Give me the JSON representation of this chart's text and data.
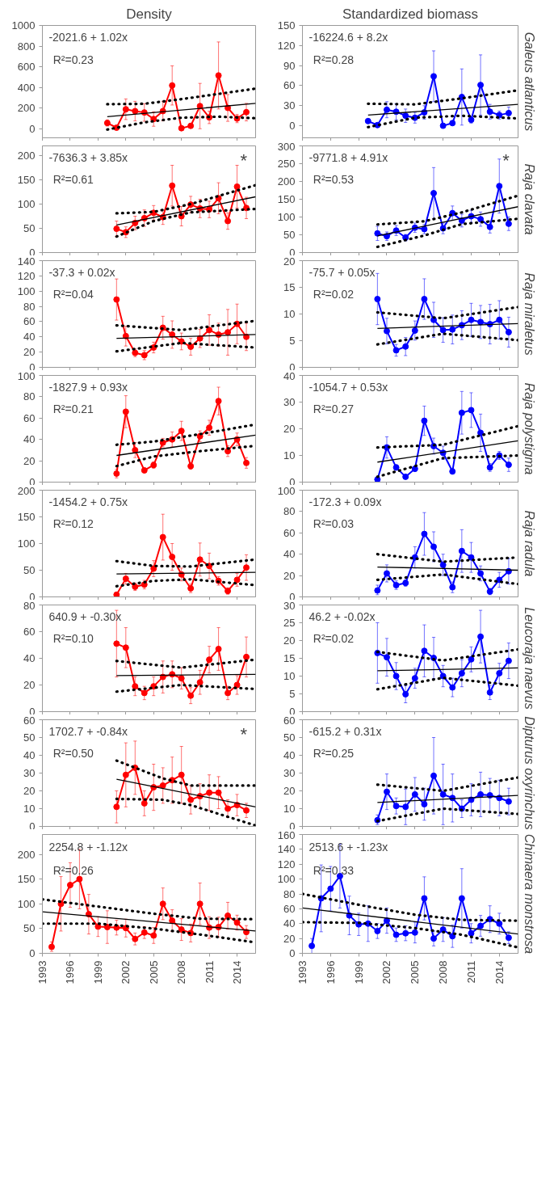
{
  "chart_data": [
    {
      "type": "line",
      "title": "Density",
      "x": [
        2000,
        2001,
        2002,
        2003,
        2004,
        2005,
        2006,
        2007,
        2008,
        2009,
        2010,
        2011,
        2012,
        2013,
        2014,
        2015
      ],
      "xlim": [
        1993,
        2016
      ],
      "xticks": [
        1993,
        1996,
        1999,
        2002,
        2005,
        2008,
        2011,
        2014
      ],
      "ylim": [
        -90,
        1000
      ],
      "yticks": [
        0,
        200,
        400,
        600,
        800,
        1000
      ],
      "grid": false,
      "tick_labels": "y",
      "annotations": [
        "-2021.6 + 1.02x",
        "R²=0.23"
      ],
      "series": [
        {
          "color": "#ff0000",
          "marker": "circle",
          "values": [
            54,
            8,
            187,
            169,
            156,
            92,
            169,
            418,
            3,
            26,
            218,
            108,
            515,
            200,
            97,
            159
          ],
          "errors": [
            30,
            null,
            100,
            95,
            85,
            70,
            95,
            190,
            null,
            20,
            220,
            60,
            325,
            130,
            40,
            85
          ]
        },
        {
          "type": "line",
          "color": "#000000",
          "x": [
            2000,
            2016
          ],
          "values": [
            115,
            244
          ]
        },
        {
          "type": "line",
          "color": "#000000",
          "line_style": "dotted",
          "x": [
            2000,
            2004,
            2008,
            2016
          ],
          "values": [
            236,
            240,
            285,
            387
          ]
        },
        {
          "type": "line",
          "color": "#000000",
          "line_style": "dotted",
          "x": [
            2000,
            2004,
            2008,
            2012,
            2016
          ],
          "values": [
            -10,
            60,
            105,
            115,
            100
          ]
        }
      ]
    },
    {
      "type": "line",
      "title": "Standardized biomass",
      "y2label": "Galeus atlanticus",
      "x": [
        2000,
        2001,
        2002,
        2003,
        2004,
        2005,
        2006,
        2007,
        2008,
        2009,
        2010,
        2011,
        2012,
        2013,
        2014,
        2015
      ],
      "xlim": [
        1993,
        2016
      ],
      "xticks": [
        1993,
        1996,
        1999,
        2002,
        2005,
        2008,
        2011,
        2014
      ],
      "ylim": [
        -18,
        150
      ],
      "yticks": [
        0,
        30,
        60,
        90,
        120,
        150
      ],
      "grid": false,
      "tick_labels": "y",
      "annotations": [
        "-16224.6 + 8.2x",
        "R²=0.28"
      ],
      "series": [
        {
          "color": "#0000ff",
          "marker": "circle",
          "values": [
            7,
            1,
            24,
            21,
            15,
            12,
            20,
            74,
            0,
            4,
            43,
            9,
            61,
            21,
            16,
            19
          ],
          "errors": [
            3,
            null,
            12,
            12,
            10,
            8,
            10,
            38,
            null,
            3,
            42,
            5,
            45,
            11,
            6,
            9
          ]
        },
        {
          "type": "line",
          "color": "#000000",
          "x": [
            2000,
            2016
          ],
          "values": [
            16,
            32
          ]
        },
        {
          "type": "line",
          "color": "#000000",
          "line_style": "dotted",
          "x": [
            2000,
            2005,
            2010,
            2016
          ],
          "values": [
            33,
            32,
            41,
            53
          ]
        },
        {
          "type": "line",
          "color": "#000000",
          "line_style": "dotted",
          "x": [
            2000,
            2005,
            2010,
            2016
          ],
          "values": [
            -2,
            12,
            15,
            11
          ]
        }
      ]
    },
    {
      "type": "line",
      "x": [
        2001,
        2002,
        2003,
        2004,
        2005,
        2006,
        2007,
        2008,
        2009,
        2010,
        2011,
        2012,
        2013,
        2014,
        2015
      ],
      "xlim": [
        1993,
        2016
      ],
      "xticks": [
        1993,
        1996,
        1999,
        2002,
        2005,
        2008,
        2011,
        2014
      ],
      "ylim": [
        0,
        220
      ],
      "yticks": [
        0,
        50,
        100,
        150,
        200
      ],
      "grid": false,
      "tick_labels": "y",
      "annotations": [
        "-7636.3 + 3.85x",
        "R²=0.61",
        "*"
      ],
      "series": [
        {
          "color": "#ff0000",
          "marker": "circle",
          "values": [
            49,
            42,
            61,
            71,
            82,
            73,
            138,
            75,
            99,
            91,
            89,
            112,
            65,
            136,
            92
          ],
          "errors": [
            16,
            11,
            14,
            17,
            15,
            15,
            42,
            20,
            17,
            19,
            17,
            32,
            17,
            44,
            22
          ]
        },
        {
          "type": "line",
          "color": "#000000",
          "x": [
            2001,
            2016
          ],
          "values": [
            57,
            115
          ]
        },
        {
          "type": "line",
          "color": "#000000",
          "line_style": "dotted",
          "x": [
            2001,
            2005,
            2009,
            2016
          ],
          "values": [
            81,
            84,
            100,
            139
          ]
        },
        {
          "type": "line",
          "color": "#000000",
          "line_style": "dotted",
          "x": [
            2001,
            2005,
            2009,
            2016
          ],
          "values": [
            33,
            65,
            83,
            90
          ]
        }
      ]
    },
    {
      "type": "line",
      "y2label": "Raja clavata",
      "x": [
        2001,
        2002,
        2003,
        2004,
        2005,
        2006,
        2007,
        2008,
        2009,
        2010,
        2011,
        2012,
        2013,
        2014,
        2015
      ],
      "xlim": [
        1993,
        2016
      ],
      "xticks": [
        1993,
        1996,
        1999,
        2002,
        2005,
        2008,
        2011,
        2014
      ],
      "ylim": [
        0,
        300
      ],
      "yticks": [
        0,
        50,
        100,
        150,
        200,
        250,
        300
      ],
      "grid": false,
      "tick_labels": "y",
      "annotations": [
        "-9771.8 + 4.91x",
        "R²=0.53",
        "*"
      ],
      "series": [
        {
          "color": "#0000ff",
          "marker": "circle",
          "values": [
            54,
            46,
            62,
            42,
            70,
            66,
            167,
            68,
            111,
            90,
            102,
            94,
            72,
            187,
            81
          ],
          "errors": [
            20,
            12,
            14,
            9,
            13,
            13,
            72,
            15,
            20,
            18,
            17,
            20,
            17,
            76,
            19
          ]
        },
        {
          "type": "line",
          "color": "#000000",
          "x": [
            2001,
            2016
          ],
          "values": [
            47,
            129
          ]
        },
        {
          "type": "line",
          "color": "#000000",
          "line_style": "dotted",
          "x": [
            2001,
            2006,
            2010,
            2016
          ],
          "values": [
            79,
            88,
            113,
            160
          ]
        },
        {
          "type": "line",
          "color": "#000000",
          "line_style": "dotted",
          "x": [
            2001,
            2006,
            2010,
            2016
          ],
          "values": [
            16,
            48,
            80,
            95
          ]
        }
      ]
    },
    {
      "type": "line",
      "x": [
        2001,
        2002,
        2003,
        2004,
        2005,
        2006,
        2007,
        2008,
        2009,
        2010,
        2011,
        2012,
        2013,
        2014,
        2015
      ],
      "xlim": [
        1993,
        2016
      ],
      "xticks": [
        1993,
        1996,
        1999,
        2002,
        2005,
        2008,
        2011,
        2014
      ],
      "ylim": [
        0,
        140
      ],
      "yticks": [
        0,
        20,
        40,
        60,
        80,
        100,
        120,
        140
      ],
      "grid": false,
      "tick_labels": "y",
      "annotations": [
        "-37.3 + 0.02x",
        "R²=0.04"
      ],
      "series": [
        {
          "color": "#ff0000",
          "marker": "circle",
          "values": [
            89,
            41,
            19,
            16,
            26,
            52,
            43,
            34,
            27,
            38,
            49,
            43,
            46,
            57,
            40
          ],
          "errors": [
            27,
            13,
            5,
            6,
            7,
            15,
            18,
            11,
            11,
            12,
            20,
            15,
            30,
            26,
            18
          ]
        },
        {
          "type": "line",
          "color": "#000000",
          "x": [
            2001,
            2016
          ],
          "values": [
            38,
            43
          ]
        },
        {
          "type": "line",
          "color": "#000000",
          "line_style": "dotted",
          "x": [
            2001,
            2008,
            2016
          ],
          "values": [
            55,
            49,
            61
          ]
        },
        {
          "type": "line",
          "color": "#000000",
          "line_style": "dotted",
          "x": [
            2001,
            2008,
            2016
          ],
          "values": [
            21,
            32,
            26
          ]
        }
      ]
    },
    {
      "type": "line",
      "y2label": "Raja miraletus",
      "x": [
        2001,
        2002,
        2003,
        2004,
        2005,
        2006,
        2007,
        2008,
        2009,
        2010,
        2011,
        2012,
        2013,
        2014,
        2015
      ],
      "xlim": [
        1993,
        2016
      ],
      "xticks": [
        1993,
        1996,
        1999,
        2002,
        2005,
        2008,
        2011,
        2014
      ],
      "ylim": [
        0,
        20
      ],
      "yticks": [
        0,
        5,
        10,
        15,
        20
      ],
      "grid": false,
      "tick_labels": "y",
      "annotations": [
        "-75.7 + 0.05x",
        "R²=0.02"
      ],
      "series": [
        {
          "color": "#0000ff",
          "marker": "circle",
          "values": [
            12.8,
            6.8,
            3.2,
            3.9,
            6.9,
            12.8,
            8.9,
            7.0,
            7.1,
            7.9,
            8.9,
            8.5,
            8.1,
            8.9,
            6.6
          ],
          "errors": [
            4.8,
            2.4,
            1.1,
            1.7,
            1.8,
            3.8,
            3.3,
            2.3,
            2.7,
            2.7,
            3.1,
            3.1,
            3.7,
            3.6,
            2.8
          ]
        },
        {
          "type": "line",
          "color": "#000000",
          "x": [
            2001,
            2016
          ],
          "values": [
            7.3,
            8.2
          ]
        },
        {
          "type": "line",
          "color": "#000000",
          "line_style": "dotted",
          "x": [
            2001,
            2008,
            2016
          ],
          "values": [
            10.3,
            9.2,
            11.3
          ]
        },
        {
          "type": "line",
          "color": "#000000",
          "line_style": "dotted",
          "x": [
            2001,
            2008,
            2016
          ],
          "values": [
            4.3,
            6.3,
            5.1
          ]
        }
      ]
    },
    {
      "type": "line",
      "x": [
        2001,
        2002,
        2003,
        2004,
        2005,
        2006,
        2007,
        2008,
        2009,
        2010,
        2011,
        2012,
        2013,
        2014,
        2015
      ],
      "xlim": [
        1993,
        2016
      ],
      "xticks": [
        1993,
        1996,
        1999,
        2002,
        2005,
        2008,
        2011,
        2014
      ],
      "ylim": [
        0,
        100
      ],
      "yticks": [
        0,
        20,
        40,
        60,
        80,
        100
      ],
      "grid": false,
      "tick_labels": "y",
      "annotations": [
        "-1827.9 + 0.93x",
        "R²=0.21"
      ],
      "series": [
        {
          "color": "#ff0000",
          "marker": "circle",
          "values": [
            8,
            66,
            30,
            11,
            16,
            37,
            40,
            48,
            15,
            43,
            51,
            76,
            29,
            40,
            18
          ],
          "errors": [
            4,
            15,
            7,
            2,
            3,
            4,
            7,
            9,
            3,
            5,
            7,
            13,
            5,
            6,
            5
          ]
        },
        {
          "type": "line",
          "color": "#000000",
          "x": [
            2001,
            2016
          ],
          "values": [
            25,
            44
          ]
        },
        {
          "type": "line",
          "color": "#000000",
          "line_style": "dotted",
          "x": [
            2001,
            2005,
            2010,
            2016
          ],
          "values": [
            35,
            38,
            45,
            54
          ]
        },
        {
          "type": "line",
          "color": "#000000",
          "line_style": "dotted",
          "x": [
            2001,
            2005,
            2010,
            2016
          ],
          "values": [
            15,
            24,
            29,
            34
          ]
        }
      ]
    },
    {
      "type": "line",
      "y2label": "Raja polystigma",
      "x": [
        2001,
        2002,
        2003,
        2004,
        2005,
        2006,
        2007,
        2008,
        2009,
        2010,
        2011,
        2012,
        2013,
        2014,
        2015
      ],
      "xlim": [
        1993,
        2016
      ],
      "xticks": [
        1993,
        1996,
        1999,
        2002,
        2005,
        2008,
        2011,
        2014
      ],
      "ylim": [
        0,
        40
      ],
      "yticks": [
        0,
        10,
        20,
        30,
        40
      ],
      "grid": false,
      "tick_labels": "y",
      "annotations": [
        "-1054.7 + 0.53x",
        "R²=0.27"
      ],
      "series": [
        {
          "color": "#0000ff",
          "marker": "circle",
          "values": [
            1,
            13,
            5.5,
            2,
            5,
            23,
            13.5,
            11,
            4,
            26,
            27,
            18.5,
            5.5,
            10,
            6.5
          ],
          "errors": [
            null,
            4,
            1,
            null,
            1,
            5.5,
            3,
            2.5,
            1,
            8,
            6.5,
            7,
            1.5,
            1.5,
            2.5
          ]
        },
        {
          "type": "line",
          "color": "#000000",
          "x": [
            2001,
            2016
          ],
          "values": [
            7.5,
            15.5
          ]
        },
        {
          "type": "line",
          "color": "#000000",
          "line_style": "dotted",
          "x": [
            2001,
            2008,
            2016
          ],
          "values": [
            13,
            14,
            21
          ]
        },
        {
          "type": "line",
          "color": "#000000",
          "line_style": "dotted",
          "x": [
            2001,
            2008,
            2016
          ],
          "values": [
            2,
            9,
            10
          ]
        }
      ]
    },
    {
      "type": "line",
      "x": [
        2001,
        2002,
        2003,
        2004,
        2005,
        2006,
        2007,
        2008,
        2009,
        2010,
        2011,
        2012,
        2013,
        2014,
        2015
      ],
      "xlim": [
        1993,
        2016
      ],
      "xticks": [
        1993,
        1996,
        1999,
        2002,
        2005,
        2008,
        2011,
        2014
      ],
      "ylim": [
        0,
        200
      ],
      "yticks": [
        0,
        50,
        100,
        150,
        200
      ],
      "grid": false,
      "tick_labels": "y",
      "annotations": [
        "-1454.2 + 0.75x",
        "R²=0.12"
      ],
      "series": [
        {
          "color": "#ff0000",
          "marker": "circle",
          "values": [
            4,
            34,
            19,
            23,
            53,
            112,
            75,
            42,
            16,
            70,
            58,
            30,
            11,
            32,
            55
          ],
          "errors": [
            4,
            10,
            7,
            8,
            15,
            43,
            25,
            12,
            8,
            31,
            24,
            8,
            6,
            12,
            24
          ]
        },
        {
          "type": "line",
          "color": "#000000",
          "x": [
            2001,
            2016
          ],
          "values": [
            43,
            46
          ]
        },
        {
          "type": "line",
          "color": "#000000",
          "line_style": "dotted",
          "x": [
            2001,
            2005,
            2009,
            2016
          ],
          "values": [
            67,
            58,
            57,
            70
          ]
        },
        {
          "type": "line",
          "color": "#000000",
          "line_style": "dotted",
          "x": [
            2001,
            2005,
            2009,
            2016
          ],
          "values": [
            20,
            30,
            33,
            22
          ]
        }
      ]
    },
    {
      "type": "line",
      "y2label": "Raja radula",
      "x": [
        2001,
        2002,
        2003,
        2004,
        2005,
        2006,
        2007,
        2008,
        2009,
        2010,
        2011,
        2012,
        2013,
        2014,
        2015
      ],
      "xlim": [
        1993,
        2016
      ],
      "xticks": [
        1993,
        1996,
        1999,
        2002,
        2005,
        2008,
        2011,
        2014
      ],
      "ylim": [
        0,
        100
      ],
      "yticks": [
        0,
        20,
        40,
        60,
        80,
        100
      ],
      "grid": false,
      "tick_labels": "y",
      "annotations": [
        "-172.3 + 0.09x",
        "R²=0.03"
      ],
      "series": [
        {
          "color": "#0000ff",
          "marker": "circle",
          "values": [
            6,
            22,
            11,
            13,
            37,
            59,
            47,
            30,
            9,
            43,
            37,
            22,
            5,
            16,
            24
          ],
          "errors": [
            [
              4,
              5
            ],
            8,
            4,
            3,
            10,
            20,
            14,
            10,
            5,
            20,
            14,
            7,
            3,
            7,
            12
          ]
        },
        {
          "type": "line",
          "color": "#000000",
          "x": [
            2001,
            2016
          ],
          "values": [
            28,
            25
          ]
        },
        {
          "type": "line",
          "color": "#000000",
          "line_style": "dotted",
          "x": [
            2001,
            2008,
            2016
          ],
          "values": [
            40,
            33,
            37
          ]
        },
        {
          "type": "line",
          "color": "#000000",
          "line_style": "dotted",
          "x": [
            2001,
            2008,
            2016
          ],
          "values": [
            16,
            21,
            12
          ]
        }
      ]
    },
    {
      "type": "line",
      "x": [
        2001,
        2002,
        2003,
        2004,
        2005,
        2006,
        2007,
        2008,
        2009,
        2010,
        2011,
        2012,
        2013,
        2014,
        2015
      ],
      "xlim": [
        1993,
        2016
      ],
      "xticks": [
        1993,
        1996,
        1999,
        2002,
        2005,
        2008,
        2011,
        2014
      ],
      "ylim": [
        0,
        80
      ],
      "yticks": [
        0,
        20,
        40,
        60,
        80
      ],
      "grid": false,
      "tick_labels": "y",
      "annotations": [
        "640.9 + -0.30x",
        "R²=0.10"
      ],
      "series": [
        {
          "color": "#ff0000",
          "marker": "circle",
          "values": [
            51,
            48,
            19,
            14,
            19,
            26,
            28,
            25,
            12,
            22,
            39,
            47,
            14,
            20,
            41
          ],
          "errors": [
            25,
            15,
            7,
            5,
            7,
            12,
            10,
            8,
            6,
            9,
            10,
            16,
            5,
            7,
            15
          ]
        },
        {
          "type": "line",
          "color": "#000000",
          "x": [
            2001,
            2016
          ],
          "values": [
            27,
            28
          ]
        },
        {
          "type": "line",
          "color": "#000000",
          "line_style": "dotted",
          "x": [
            2001,
            2008,
            2016
          ],
          "values": [
            38,
            33,
            39
          ]
        },
        {
          "type": "line",
          "color": "#000000",
          "line_style": "dotted",
          "x": [
            2001,
            2008,
            2016
          ],
          "values": [
            15,
            20,
            17
          ]
        }
      ]
    },
    {
      "type": "line",
      "y2label": "Leucoraja naevus",
      "x": [
        2001,
        2002,
        2003,
        2004,
        2005,
        2006,
        2007,
        2008,
        2009,
        2010,
        2011,
        2012,
        2013,
        2014,
        2015
      ],
      "xlim": [
        1993,
        2016
      ],
      "xticks": [
        1993,
        1996,
        1999,
        2002,
        2005,
        2008,
        2011,
        2014
      ],
      "ylim": [
        0,
        30
      ],
      "yticks": [
        0,
        5,
        10,
        15,
        20,
        25,
        30
      ],
      "grid": false,
      "tick_labels": "y",
      "annotations": [
        "46.2 + -0.02x",
        "R²=0.02"
      ],
      "series": [
        {
          "color": "#0000ff",
          "marker": "circle",
          "values": [
            16.5,
            15.3,
            10,
            4.9,
            9.4,
            17.1,
            15.1,
            10,
            6.8,
            10.8,
            14.7,
            21.1,
            5.4,
            10.8,
            14.3
          ],
          "errors": [
            8.5,
            5.3,
            3.8,
            2.4,
            2.8,
            7.3,
            5.8,
            3,
            2.6,
            3.8,
            3.5,
            7.4,
            2,
            2.8,
            5
          ]
        },
        {
          "type": "line",
          "color": "#000000",
          "x": [
            2001,
            2016
          ],
          "values": [
            11.5,
            12.3
          ]
        },
        {
          "type": "line",
          "color": "#000000",
          "line_style": "dotted",
          "x": [
            2001,
            2008,
            2016
          ],
          "values": [
            16.8,
            14.4,
            17.5
          ]
        },
        {
          "type": "line",
          "color": "#000000",
          "line_style": "dotted",
          "x": [
            2001,
            2008,
            2016
          ],
          "values": [
            6.3,
            9.5,
            7.3
          ]
        }
      ]
    },
    {
      "type": "line",
      "x": [
        2001,
        2002,
        2003,
        2004,
        2005,
        2006,
        2007,
        2008,
        2009,
        2010,
        2011,
        2012,
        2013,
        2014,
        2015
      ],
      "xlim": [
        1993,
        2016
      ],
      "xticks": [
        1993,
        1996,
        1999,
        2002,
        2005,
        2008,
        2011,
        2014
      ],
      "ylim": [
        0,
        60
      ],
      "yticks": [
        0,
        10,
        20,
        30,
        40,
        50,
        60
      ],
      "grid": false,
      "tick_labels": "y",
      "annotations": [
        "1702.7 + -0.84x",
        "R²=0.50",
        "*"
      ],
      "series": [
        {
          "color": "#ff0000",
          "marker": "circle",
          "values": [
            11,
            29,
            33,
            13,
            22,
            23,
            26,
            29,
            15,
            17,
            19,
            19,
            10,
            12,
            9
          ],
          "errors": [
            9,
            18,
            15,
            7,
            13,
            10,
            13,
            16,
            8,
            7,
            10,
            9,
            5,
            6,
            4
          ]
        },
        {
          "type": "line",
          "color": "#000000",
          "x": [
            2001,
            2016
          ],
          "values": [
            26.5,
            11
          ]
        },
        {
          "type": "line",
          "color": "#000000",
          "line_style": "dotted",
          "x": [
            2001,
            2006,
            2009,
            2016
          ],
          "values": [
            37,
            27,
            23,
            23
          ]
        },
        {
          "type": "line",
          "color": "#000000",
          "line_style": "dotted",
          "x": [
            2001,
            2006,
            2009,
            2016
          ],
          "values": [
            15.5,
            15,
            12,
            0.5
          ]
        }
      ]
    },
    {
      "type": "line",
      "y2label": "Dipturus oxyrinchus",
      "x": [
        2001,
        2002,
        2003,
        2004,
        2005,
        2006,
        2007,
        2008,
        2009,
        2010,
        2011,
        2012,
        2013,
        2014,
        2015
      ],
      "xlim": [
        1993,
        2016
      ],
      "xticks": [
        1993,
        1996,
        1999,
        2002,
        2005,
        2008,
        2011,
        2014
      ],
      "ylim": [
        0,
        60
      ],
      "yticks": [
        0,
        10,
        20,
        30,
        40,
        50,
        60
      ],
      "grid": false,
      "tick_labels": "y",
      "annotations": [
        "-615.2 + 0.31x",
        "R²=0.25"
      ],
      "series": [
        {
          "color": "#0000ff",
          "marker": "circle",
          "values": [
            3.5,
            19.5,
            11.5,
            11,
            18,
            12.5,
            28.5,
            18,
            16,
            10,
            15,
            18,
            17.5,
            16,
            14
          ],
          "errors": [
            [
              2.5,
              3
            ],
            10,
            4.5,
            10,
            9.5,
            9,
            21.5,
            17,
            13.5,
            5,
            9,
            12.5,
            9.5,
            10,
            7.5
          ]
        },
        {
          "type": "line",
          "color": "#000000",
          "x": [
            2001,
            2016
          ],
          "values": [
            13.5,
            17.4
          ]
        },
        {
          "type": "line",
          "color": "#000000",
          "line_style": "dotted",
          "x": [
            2001,
            2008,
            2016
          ],
          "values": [
            23.5,
            20,
            27.5
          ]
        },
        {
          "type": "line",
          "color": "#000000",
          "line_style": "dotted",
          "x": [
            2001,
            2008,
            2016
          ],
          "values": [
            3,
            10,
            7
          ]
        }
      ]
    },
    {
      "type": "line",
      "x": [
        1994,
        1995,
        1996,
        1997,
        1998,
        1999,
        2000,
        2001,
        2002,
        2003,
        2004,
        2005,
        2006,
        2007,
        2008,
        2009,
        2010,
        2011,
        2012,
        2013,
        2014,
        2015
      ],
      "xlim": [
        1993,
        2016
      ],
      "xticks": [
        1993,
        1996,
        1999,
        2002,
        2005,
        2008,
        2011,
        2014
      ],
      "ylim": [
        0,
        240
      ],
      "yticks": [
        0,
        50,
        100,
        150,
        200
      ],
      "grid": false,
      "annotations": [
        "2254.8 + -1.12x",
        "R²=0.26"
      ],
      "series": [
        {
          "color": "#ff0000",
          "marker": "circle",
          "values": [
            13,
            100,
            138,
            150,
            79,
            54,
            53,
            52,
            51,
            29,
            42,
            36,
            100,
            66,
            48,
            41,
            100,
            52,
            53,
            76,
            62,
            43
          ],
          "errors": [
            [
              9,
              10
            ],
            55,
            45,
            60,
            40,
            20,
            33,
            15,
            18,
            12,
            12,
            16,
            32,
            22,
            22,
            18,
            42,
            22,
            20,
            27,
            15,
            13
          ]
        },
        {
          "type": "line",
          "color": "#000000",
          "x": [
            1993,
            2016
          ],
          "values": [
            84,
            45
          ]
        },
        {
          "type": "line",
          "color": "#000000",
          "line_style": "dotted",
          "x": [
            1993,
            2000,
            2005,
            2010,
            2016
          ],
          "values": [
            109,
            92,
            80,
            70,
            69
          ]
        },
        {
          "type": "line",
          "color": "#000000",
          "line_style": "dotted",
          "x": [
            1993,
            1999,
            2005,
            2010,
            2016
          ],
          "values": [
            60,
            60,
            50,
            38,
            22
          ]
        }
      ]
    },
    {
      "type": "line",
      "y2label": "Chimaera monstrosa",
      "x": [
        1994,
        1995,
        1996,
        1997,
        1998,
        1999,
        2000,
        2001,
        2002,
        2003,
        2004,
        2005,
        2006,
        2007,
        2008,
        2009,
        2010,
        2011,
        2012,
        2013,
        2014,
        2015
      ],
      "xlim": [
        1993,
        2016
      ],
      "xticks": [
        1993,
        1996,
        1999,
        2002,
        2005,
        2008,
        2011,
        2014
      ],
      "ylim": [
        0,
        160
      ],
      "yticks": [
        0,
        20,
        40,
        60,
        80,
        100,
        120,
        140,
        160
      ],
      "grid": false,
      "annotations": [
        "2513.6 + -1.23x",
        "R²=0.33"
      ],
      "series": [
        {
          "color": "#0000ff",
          "marker": "circle",
          "values": [
            10,
            74,
            87,
            104,
            51,
            39,
            40,
            30,
            44,
            25,
            27,
            28,
            74,
            20,
            32,
            23,
            74,
            27,
            37,
            46,
            40,
            21
          ],
          "errors": [
            10,
            45,
            30,
            43,
            26,
            15,
            24,
            10,
            17,
            9,
            10,
            14,
            29,
            10,
            16,
            15,
            40,
            13,
            14,
            18,
            14,
            8
          ]
        },
        {
          "type": "line",
          "color": "#000000",
          "x": [
            1993,
            2016
          ],
          "values": [
            61,
            26
          ]
        },
        {
          "type": "line",
          "color": "#000000",
          "line_style": "dotted",
          "x": [
            1993,
            2000,
            2005,
            2010,
            2016
          ],
          "values": [
            80,
            63,
            52,
            45,
            44
          ]
        },
        {
          "type": "line",
          "color": "#000000",
          "line_style": "dotted",
          "x": [
            1993,
            1999,
            2005,
            2010,
            2016
          ],
          "values": [
            42,
            41,
            34,
            25,
            8
          ]
        }
      ]
    }
  ]
}
